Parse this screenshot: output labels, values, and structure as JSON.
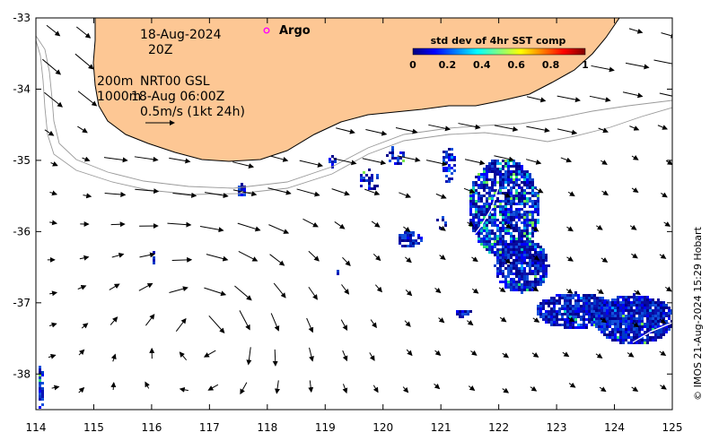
{
  "map": {
    "x_axis": {
      "min": 114,
      "max": 125,
      "ticks": [
        "114",
        "115",
        "116",
        "117",
        "118",
        "119",
        "120",
        "121",
        "122",
        "123",
        "124",
        "125"
      ]
    },
    "y_axis": {
      "min": -38.5,
      "max": -33,
      "ticks": [
        "-33",
        "-34",
        "-35",
        "-36",
        "-37",
        "-38"
      ]
    },
    "colors": {
      "land": "#fdc794",
      "coast": "#000000",
      "isobath": "#9a9a9a",
      "arrow": "#000000",
      "argo": "#ff00ff"
    }
  },
  "annotations": {
    "date": "18-Aug-2024",
    "hour": "20Z",
    "depth_200": "200m",
    "product": "NRT00 GSL",
    "depth_1000": "1000m",
    "product_time": "18-Aug 06:00Z",
    "scale": "0.5m/s (1kt 24h)"
  },
  "legend": {
    "argo_label": "Argo"
  },
  "colorbar": {
    "title": "std dev of 4hr SST comp",
    "ticks": [
      "0",
      "0.2",
      "0.4",
      "0.6",
      "0.8",
      "1"
    ],
    "stops": [
      "#00007f",
      "#0000ff",
      "#0080ff",
      "#00ffff",
      "#80ff80",
      "#ffff00",
      "#ff8000",
      "#ff0000",
      "#7f0000"
    ]
  },
  "credit": "© IMOS 21-Aug-2024 15:29 Hobart"
}
